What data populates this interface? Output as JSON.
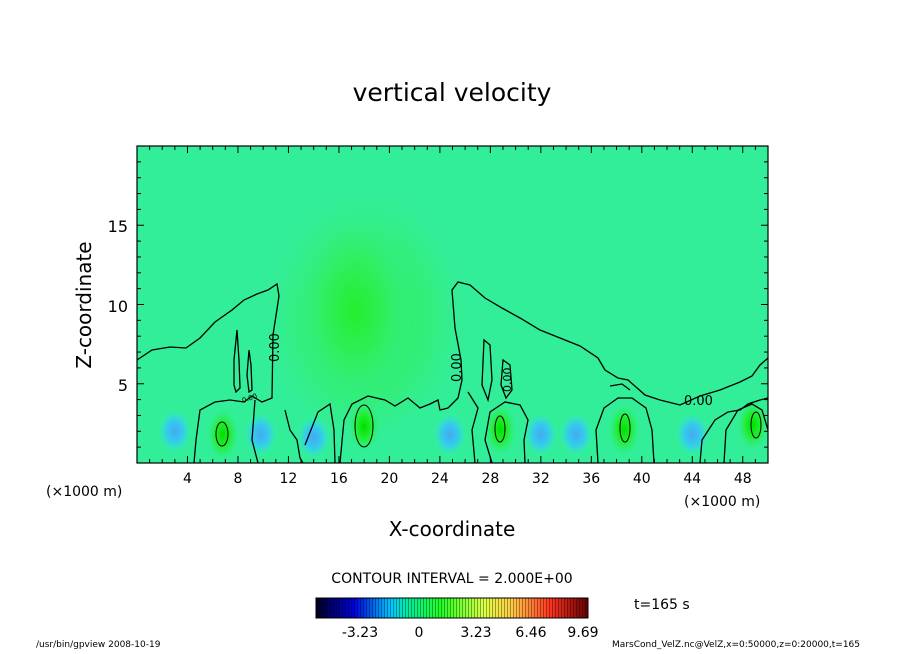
{
  "chart_data": {
    "type": "heatmap",
    "title": "vertical velocity",
    "xlabel": "X-coordinate",
    "ylabel": "Z-coordinate",
    "x_unit": "(×1000 m)",
    "y_unit": "",
    "xlim": [
      0,
      50
    ],
    "ylim": [
      0,
      20
    ],
    "x_ticks": [
      "4",
      "8",
      "12",
      "16",
      "20",
      "24",
      "28",
      "32",
      "36",
      "40",
      "44",
      "48"
    ],
    "y_ticks": [
      "5",
      "10",
      "15"
    ],
    "contour_interval_label": "CONTOUR INTERVAL = 2.000E+00",
    "contour_labels": [
      "0.00",
      "0.00",
      "0.00",
      "0.00",
      "0.00"
    ],
    "colorbar": {
      "ticks": [
        "-3.23",
        "0",
        "3.23",
        "6.46",
        "9.69"
      ],
      "range": [
        -6.46,
        12.92
      ],
      "colormap": [
        "#000033",
        "#0000ff",
        "#00ffff",
        "#00ff66",
        "#ffff00",
        "#ff0000",
        "#660000"
      ]
    },
    "time_label": "t=165 s",
    "updrafts": [
      {
        "x": 6.8,
        "z": 1.8,
        "max": 4.2
      },
      {
        "x": 18.0,
        "z": 2.3,
        "max": 4.5
      },
      {
        "x": 28.8,
        "z": 2.1,
        "max": 3.6
      },
      {
        "x": 38.6,
        "z": 2.1,
        "max": 3.4
      },
      {
        "x": 48.8,
        "z": 2.4,
        "max": 3.2
      }
    ],
    "downdrafts": [
      {
        "x": 3.0,
        "z": 2.0
      },
      {
        "x": 9.8,
        "z": 1.8
      },
      {
        "x": 14.0,
        "z": 1.6
      },
      {
        "x": 24.8,
        "z": 1.8
      },
      {
        "x": 32.0,
        "z": 1.8
      },
      {
        "x": 34.8,
        "z": 1.8
      },
      {
        "x": 44.0,
        "z": 1.8
      }
    ]
  },
  "footer": {
    "left": "/usr/bin/gpview  2008-10-19",
    "right": "MarsCond_VelZ.nc@VelZ,x=0:50000,z=0:20000,t=165"
  }
}
